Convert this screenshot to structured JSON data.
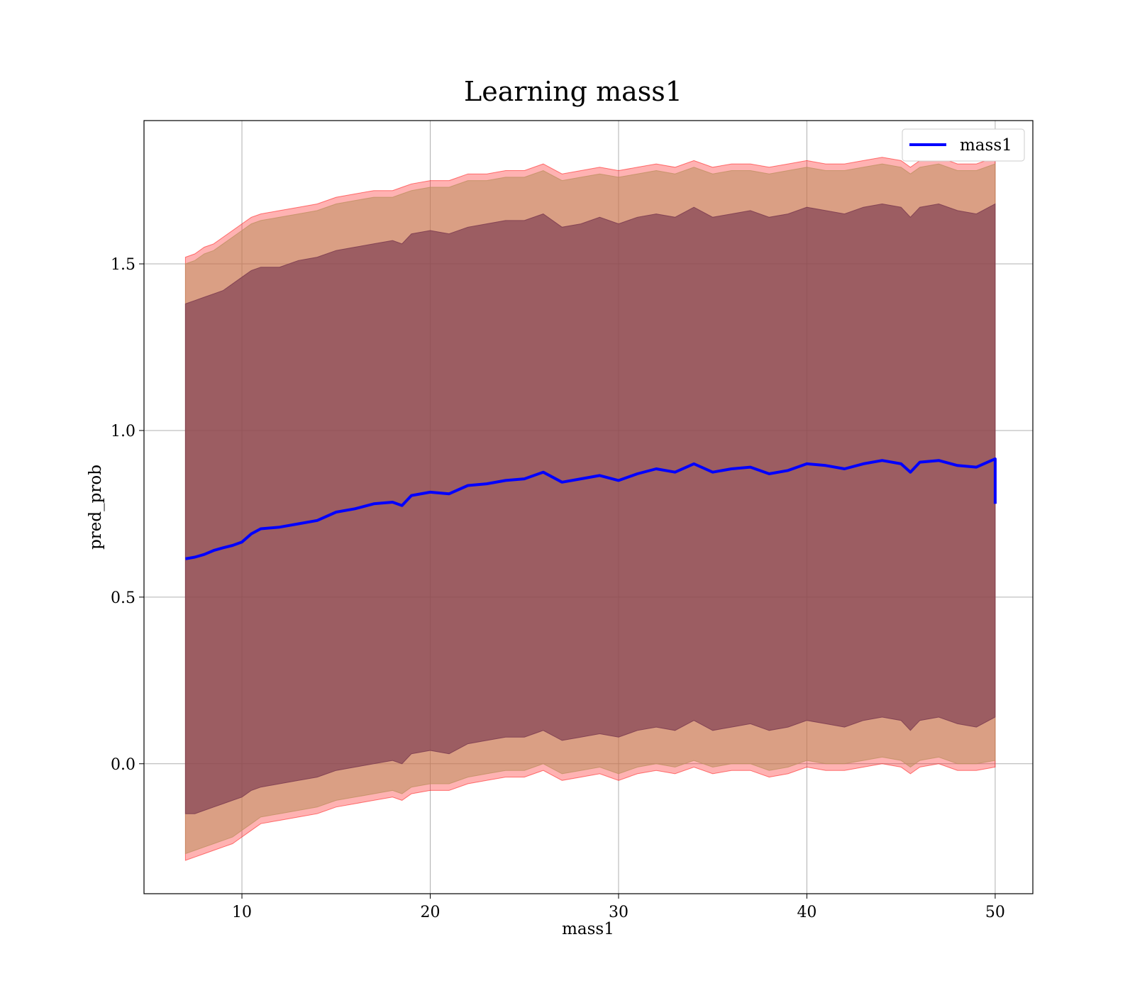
{
  "chart_data": {
    "type": "line",
    "title": "Learning mass1",
    "xlabel": "mass1",
    "ylabel": "pred_prob",
    "xlim": [
      4.8,
      52.0
    ],
    "ylim": [
      -0.39,
      1.93
    ],
    "xticks": [
      10,
      20,
      30,
      40,
      50
    ],
    "yticks": [
      0.0,
      0.5,
      1.0,
      1.5
    ],
    "xtick_labels": [
      "10",
      "20",
      "30",
      "40",
      "50"
    ],
    "ytick_labels": [
      "0.0",
      "0.5",
      "1.0",
      "1.5"
    ],
    "grid": true,
    "legend": {
      "placement": "top-right",
      "entries": [
        "mass1"
      ]
    },
    "series": [
      {
        "name": "mass1",
        "color": "#0000ff",
        "x": [
          7.0,
          7.5,
          8.0,
          8.5,
          9.0,
          9.5,
          10.0,
          10.5,
          11.0,
          12.0,
          13.0,
          14.0,
          15.0,
          16.0,
          17.0,
          18.0,
          18.5,
          19.0,
          20.0,
          21.0,
          22.0,
          23.0,
          24.0,
          25.0,
          26.0,
          27.0,
          28.0,
          29.0,
          30.0,
          31.0,
          32.0,
          33.0,
          34.0,
          35.0,
          36.0,
          37.0,
          38.0,
          39.0,
          40.0,
          41.0,
          42.0,
          43.0,
          44.0,
          45.0,
          45.5,
          46.0,
          47.0,
          48.0,
          49.0,
          50.0
        ],
        "y": [
          0.615,
          0.62,
          0.628,
          0.64,
          0.648,
          0.655,
          0.665,
          0.69,
          0.705,
          0.71,
          0.72,
          0.73,
          0.755,
          0.765,
          0.78,
          0.785,
          0.775,
          0.805,
          0.815,
          0.81,
          0.835,
          0.84,
          0.85,
          0.855,
          0.875,
          0.845,
          0.855,
          0.865,
          0.85,
          0.87,
          0.885,
          0.875,
          0.9,
          0.875,
          0.885,
          0.89,
          0.87,
          0.88,
          0.9,
          0.895,
          0.885,
          0.9,
          0.91,
          0.9,
          0.875,
          0.905,
          0.91,
          0.895,
          0.89,
          0.915
        ],
        "end_drop": 0.78
      }
    ],
    "bands": [
      {
        "color": "#ff0000",
        "opacity": 0.3,
        "upper": [
          1.52,
          1.53,
          1.55,
          1.56,
          1.58,
          1.6,
          1.62,
          1.64,
          1.65,
          1.66,
          1.67,
          1.68,
          1.7,
          1.71,
          1.72,
          1.72,
          1.73,
          1.74,
          1.75,
          1.75,
          1.77,
          1.77,
          1.78,
          1.78,
          1.8,
          1.77,
          1.78,
          1.79,
          1.78,
          1.79,
          1.8,
          1.79,
          1.81,
          1.79,
          1.8,
          1.8,
          1.79,
          1.8,
          1.81,
          1.8,
          1.8,
          1.81,
          1.82,
          1.81,
          1.79,
          1.81,
          1.82,
          1.8,
          1.8,
          1.82
        ],
        "lower": [
          -0.29,
          -0.28,
          -0.27,
          -0.26,
          -0.25,
          -0.24,
          -0.22,
          -0.2,
          -0.18,
          -0.17,
          -0.16,
          -0.15,
          -0.13,
          -0.12,
          -0.11,
          -0.1,
          -0.11,
          -0.09,
          -0.08,
          -0.08,
          -0.06,
          -0.05,
          -0.04,
          -0.04,
          -0.02,
          -0.05,
          -0.04,
          -0.03,
          -0.05,
          -0.03,
          -0.02,
          -0.03,
          -0.01,
          -0.03,
          -0.02,
          -0.02,
          -0.04,
          -0.03,
          -0.01,
          -0.02,
          -0.02,
          -0.01,
          0.0,
          -0.01,
          -0.03,
          -0.01,
          0.0,
          -0.02,
          -0.02,
          -0.01
        ]
      },
      {
        "color": "#bc8f5f",
        "opacity": 0.55,
        "upper": [
          1.5,
          1.51,
          1.53,
          1.54,
          1.56,
          1.58,
          1.6,
          1.62,
          1.63,
          1.64,
          1.65,
          1.66,
          1.68,
          1.69,
          1.7,
          1.7,
          1.71,
          1.72,
          1.73,
          1.73,
          1.75,
          1.75,
          1.76,
          1.76,
          1.78,
          1.75,
          1.76,
          1.77,
          1.76,
          1.77,
          1.78,
          1.77,
          1.79,
          1.77,
          1.78,
          1.78,
          1.77,
          1.78,
          1.79,
          1.78,
          1.78,
          1.79,
          1.8,
          1.79,
          1.77,
          1.79,
          1.8,
          1.78,
          1.78,
          1.8
        ],
        "lower": [
          -0.27,
          -0.26,
          -0.25,
          -0.24,
          -0.23,
          -0.22,
          -0.2,
          -0.18,
          -0.16,
          -0.15,
          -0.14,
          -0.13,
          -0.11,
          -0.1,
          -0.09,
          -0.08,
          -0.09,
          -0.07,
          -0.06,
          -0.06,
          -0.04,
          -0.03,
          -0.02,
          -0.02,
          0.0,
          -0.03,
          -0.02,
          -0.01,
          -0.03,
          -0.01,
          0.0,
          -0.01,
          0.01,
          -0.01,
          0.0,
          0.0,
          -0.02,
          -0.01,
          0.01,
          0.0,
          0.0,
          0.01,
          0.02,
          0.01,
          -0.01,
          0.01,
          0.02,
          0.0,
          0.0,
          0.01
        ]
      },
      {
        "color": "#7b3b50",
        "opacity": 0.65,
        "upper": [
          1.38,
          1.39,
          1.4,
          1.41,
          1.42,
          1.44,
          1.46,
          1.48,
          1.49,
          1.49,
          1.51,
          1.52,
          1.54,
          1.55,
          1.56,
          1.57,
          1.56,
          1.59,
          1.6,
          1.59,
          1.61,
          1.62,
          1.63,
          1.63,
          1.65,
          1.61,
          1.62,
          1.64,
          1.62,
          1.64,
          1.65,
          1.64,
          1.67,
          1.64,
          1.65,
          1.66,
          1.64,
          1.65,
          1.67,
          1.66,
          1.65,
          1.67,
          1.68,
          1.67,
          1.64,
          1.67,
          1.68,
          1.66,
          1.65,
          1.68
        ],
        "lower": [
          -0.15,
          -0.15,
          -0.14,
          -0.13,
          -0.12,
          -0.11,
          -0.1,
          -0.08,
          -0.07,
          -0.06,
          -0.05,
          -0.04,
          -0.02,
          -0.01,
          0.0,
          0.01,
          0.0,
          0.03,
          0.04,
          0.03,
          0.06,
          0.07,
          0.08,
          0.08,
          0.1,
          0.07,
          0.08,
          0.09,
          0.08,
          0.1,
          0.11,
          0.1,
          0.13,
          0.1,
          0.11,
          0.12,
          0.1,
          0.11,
          0.13,
          0.12,
          0.11,
          0.13,
          0.14,
          0.13,
          0.1,
          0.13,
          0.14,
          0.12,
          0.11,
          0.14
        ]
      }
    ]
  }
}
